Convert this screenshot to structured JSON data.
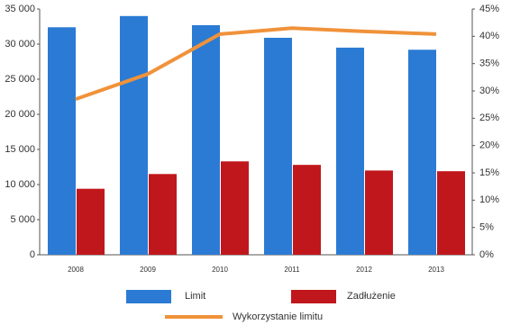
{
  "chart_data": {
    "type": "bar",
    "categories": [
      "2008",
      "2009",
      "2010",
      "2011",
      "2012",
      "2013"
    ],
    "series": [
      {
        "name": "Limit",
        "type": "bar",
        "color": "#2b7bd4",
        "values": [
          32400,
          34000,
          32700,
          30900,
          29500,
          29200
        ]
      },
      {
        "name": "Zadłużenie",
        "type": "bar",
        "color": "#c0171c",
        "values": [
          9400,
          11500,
          13300,
          12800,
          12000,
          11900
        ]
      },
      {
        "name": "Wykorzystanie limitu",
        "type": "line",
        "axis": "y2",
        "color": "#f0923a",
        "values": [
          28.5,
          33.1,
          40.4,
          41.5,
          40.9,
          40.4
        ]
      }
    ],
    "ylim": [
      0,
      35000
    ],
    "yticks": [
      0,
      {
        "value": 5000,
        "label": "5 000"
      },
      {
        "value": 10000,
        "label": "10 000"
      },
      {
        "value": 15000,
        "label": "15 000"
      },
      {
        "value": 20000,
        "label": "20 000"
      },
      {
        "value": 25000,
        "label": "25 000"
      },
      {
        "value": 30000,
        "label": "30 000"
      },
      {
        "value": 35000,
        "label": "35 000"
      }
    ],
    "y2lim": [
      0,
      45
    ],
    "y2ticks": [
      {
        "value": 0,
        "label": "0%"
      },
      {
        "value": 5,
        "label": "5%"
      },
      {
        "value": 10,
        "label": "10%"
      },
      {
        "value": 15,
        "label": "15%"
      },
      {
        "value": 20,
        "label": "20%"
      },
      {
        "value": 25,
        "label": "25%"
      },
      {
        "value": 30,
        "label": "30%"
      },
      {
        "value": 35,
        "label": "35%"
      },
      {
        "value": 40,
        "label": "40%"
      },
      {
        "value": 45,
        "label": "45%"
      }
    ],
    "grid": false
  }
}
